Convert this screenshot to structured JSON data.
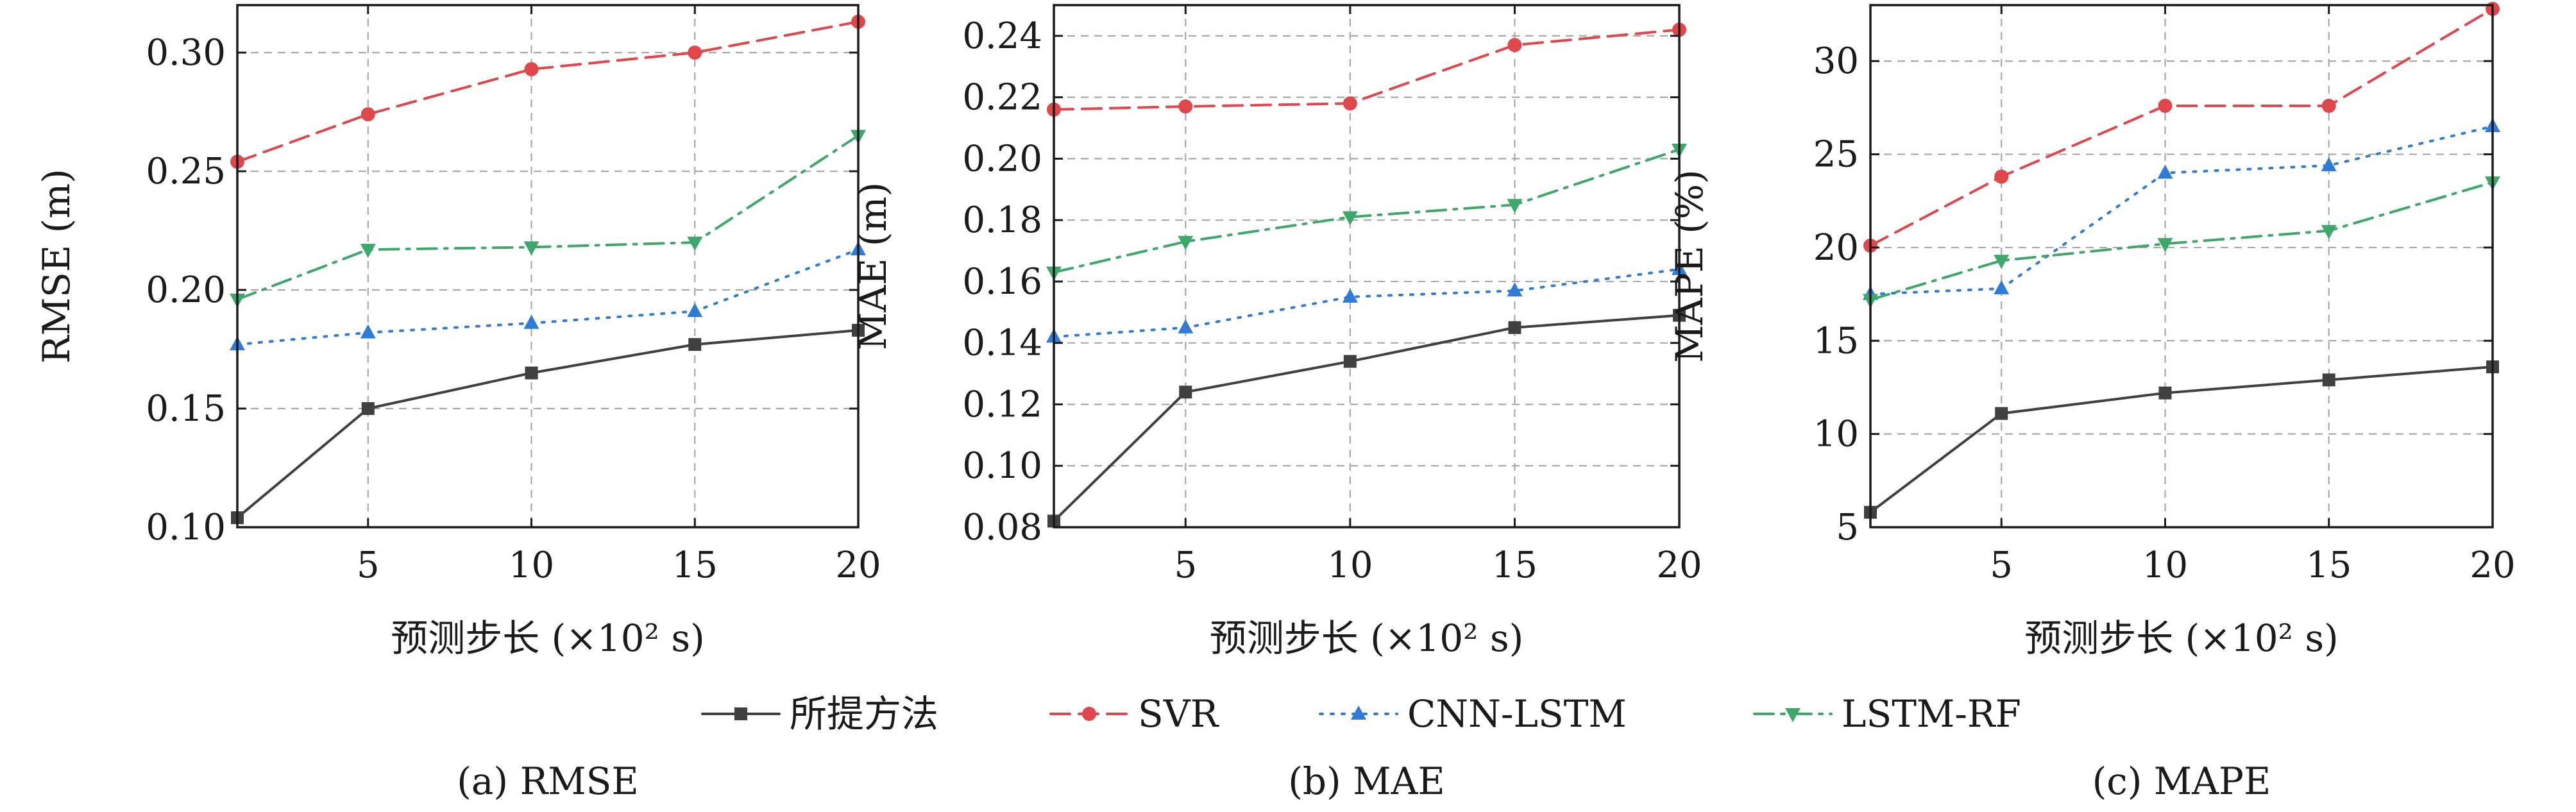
{
  "legend": [
    {
      "label": "所提方法",
      "series": 0
    },
    {
      "label": "SVR",
      "series": 1
    },
    {
      "label": "CNN-LSTM",
      "series": 2
    },
    {
      "label": "LSTM-RF",
      "series": 3
    }
  ],
  "series_styles": [
    {
      "name": "所提方法",
      "color": "#404040",
      "dash": "none",
      "marker": "square"
    },
    {
      "name": "SVR",
      "color": "#e0474c",
      "dash": "dashed",
      "marker": "circle"
    },
    {
      "name": "CNN-LSTM",
      "color": "#2f7bd6",
      "dash": "dotted",
      "marker": "triangle-up"
    },
    {
      "name": "LSTM-RF",
      "color": "#3ea86b",
      "dash": "dashdot",
      "marker": "triangle-down"
    }
  ],
  "chart_data": [
    {
      "type": "line",
      "caption": "(a) RMSE",
      "xlabel": "预测步长 (×10² s)",
      "ylabel": "RMSE (m)",
      "x": [
        1,
        5,
        10,
        15,
        20
      ],
      "xlim": [
        1,
        20
      ],
      "xticks": [
        5,
        10,
        15,
        20
      ],
      "xtick_labels": [
        "5",
        "10",
        "15",
        "20"
      ],
      "ylim": [
        0.1,
        0.32
      ],
      "yticks": [
        0.1,
        0.15,
        0.2,
        0.25,
        0.3
      ],
      "ytick_labels": [
        "0.10",
        "0.15",
        "0.20",
        "0.25",
        "0.30"
      ],
      "grid": true,
      "series": [
        {
          "name": "所提方法",
          "values": [
            0.104,
            0.15,
            0.165,
            0.177,
            0.183
          ]
        },
        {
          "name": "SVR",
          "values": [
            0.254,
            0.274,
            0.293,
            0.3,
            0.313
          ]
        },
        {
          "name": "CNN-LSTM",
          "values": [
            0.177,
            0.182,
            0.186,
            0.191,
            0.217
          ]
        },
        {
          "name": "LSTM-RF",
          "values": [
            0.196,
            0.217,
            0.218,
            0.22,
            0.265
          ]
        }
      ]
    },
    {
      "type": "line",
      "caption": "(b) MAE",
      "xlabel": "预测步长 (×10² s)",
      "ylabel": "MAE (m)",
      "x": [
        1,
        5,
        10,
        15,
        20
      ],
      "xlim": [
        1,
        20
      ],
      "xticks": [
        5,
        10,
        15,
        20
      ],
      "xtick_labels": [
        "5",
        "10",
        "15",
        "20"
      ],
      "ylim": [
        0.08,
        0.25
      ],
      "yticks": [
        0.08,
        0.1,
        0.12,
        0.14,
        0.16,
        0.18,
        0.2,
        0.22,
        0.24
      ],
      "ytick_labels": [
        "0.08",
        "0.10",
        "0.12",
        "0.14",
        "0.16",
        "0.18",
        "0.20",
        "0.22",
        "0.24"
      ],
      "grid": true,
      "series": [
        {
          "name": "所提方法",
          "values": [
            0.082,
            0.124,
            0.134,
            0.145,
            0.149
          ]
        },
        {
          "name": "SVR",
          "values": [
            0.216,
            0.217,
            0.218,
            0.237,
            0.242
          ]
        },
        {
          "name": "CNN-LSTM",
          "values": [
            0.142,
            0.145,
            0.155,
            0.157,
            0.164
          ]
        },
        {
          "name": "LSTM-RF",
          "values": [
            0.163,
            0.173,
            0.181,
            0.185,
            0.203
          ]
        }
      ]
    },
    {
      "type": "line",
      "caption": "(c) MAPE",
      "xlabel": "预测步长 (×10² s)",
      "ylabel": "MAPE (%)",
      "x": [
        1,
        5,
        10,
        15,
        20
      ],
      "xlim": [
        1,
        20
      ],
      "xticks": [
        5,
        10,
        15,
        20
      ],
      "xtick_labels": [
        "5",
        "10",
        "15",
        "20"
      ],
      "ylim": [
        5,
        33
      ],
      "yticks": [
        5,
        10,
        15,
        20,
        25,
        30
      ],
      "ytick_labels": [
        "5",
        "10",
        "15",
        "20",
        "25",
        "30"
      ],
      "grid": true,
      "series": [
        {
          "name": "所提方法",
          "values": [
            5.8,
            11.1,
            12.2,
            12.9,
            13.6
          ]
        },
        {
          "name": "SVR",
          "values": [
            20.1,
            23.8,
            27.6,
            27.6,
            32.8
          ]
        },
        {
          "name": "CNN-LSTM",
          "values": [
            17.5,
            17.8,
            24.0,
            24.4,
            26.5
          ]
        },
        {
          "name": "LSTM-RF",
          "values": [
            17.2,
            19.3,
            20.2,
            20.9,
            23.5
          ]
        }
      ]
    }
  ]
}
